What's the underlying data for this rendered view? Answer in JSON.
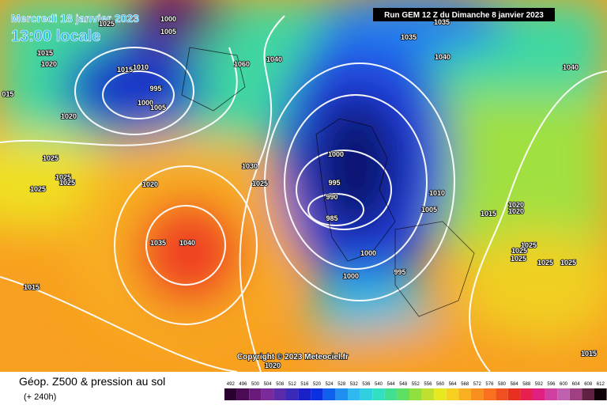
{
  "header": {
    "date": "Mercredi 18 janvier 2023",
    "time": "13:00 locale",
    "run": "Run GEM 12 Z du Dimanche 8 janvier 2023"
  },
  "copyright": "Copyright © 2023 Meteociel.fr",
  "legend": {
    "title": "Géop. Z500 & pression au sol",
    "subtitle": "(+ 240h)"
  },
  "isobars": [
    "1025",
    "1000",
    "1005",
    "1015",
    "1020",
    "1015",
    "1010",
    "995",
    "1000",
    "1005",
    "1020",
    "015",
    "1025",
    "1025",
    "1025",
    "1025",
    "1020",
    "1030",
    "1025",
    "1060",
    "1040",
    "1035",
    "1035",
    "1040",
    "1040",
    "1000",
    "995",
    "990",
    "985",
    "1010",
    "1005",
    "1015",
    "1020",
    "1020",
    "1025",
    "1025",
    "1025",
    "1025",
    "1025",
    "1035",
    "1040",
    "1000",
    "1000",
    "995",
    "1015",
    "1020",
    "1015"
  ],
  "colorbar": {
    "labels": [
      492,
      496,
      500,
      504,
      508,
      512,
      516,
      520,
      524,
      528,
      532,
      536,
      540,
      544,
      548,
      552,
      556,
      560,
      564,
      568,
      572,
      576,
      580,
      584,
      588,
      592,
      596,
      600,
      604,
      608,
      612
    ],
    "colors": [
      "#2a0030",
      "#4a0a55",
      "#6a1a7a",
      "#7a2a9a",
      "#5a2aa8",
      "#3a2ab8",
      "#1a20c8",
      "#0a30e0",
      "#1060f0",
      "#2090f0",
      "#30b8f0",
      "#30d0e0",
      "#30e0c0",
      "#40e090",
      "#60e060",
      "#90e040",
      "#c0e030",
      "#e8e820",
      "#f8d020",
      "#f8b020",
      "#f89020",
      "#f87020",
      "#f05020",
      "#e83020",
      "#e82050",
      "#e02080",
      "#d040a0",
      "#c060b0",
      "#a04080",
      "#602040",
      "#100008"
    ]
  }
}
